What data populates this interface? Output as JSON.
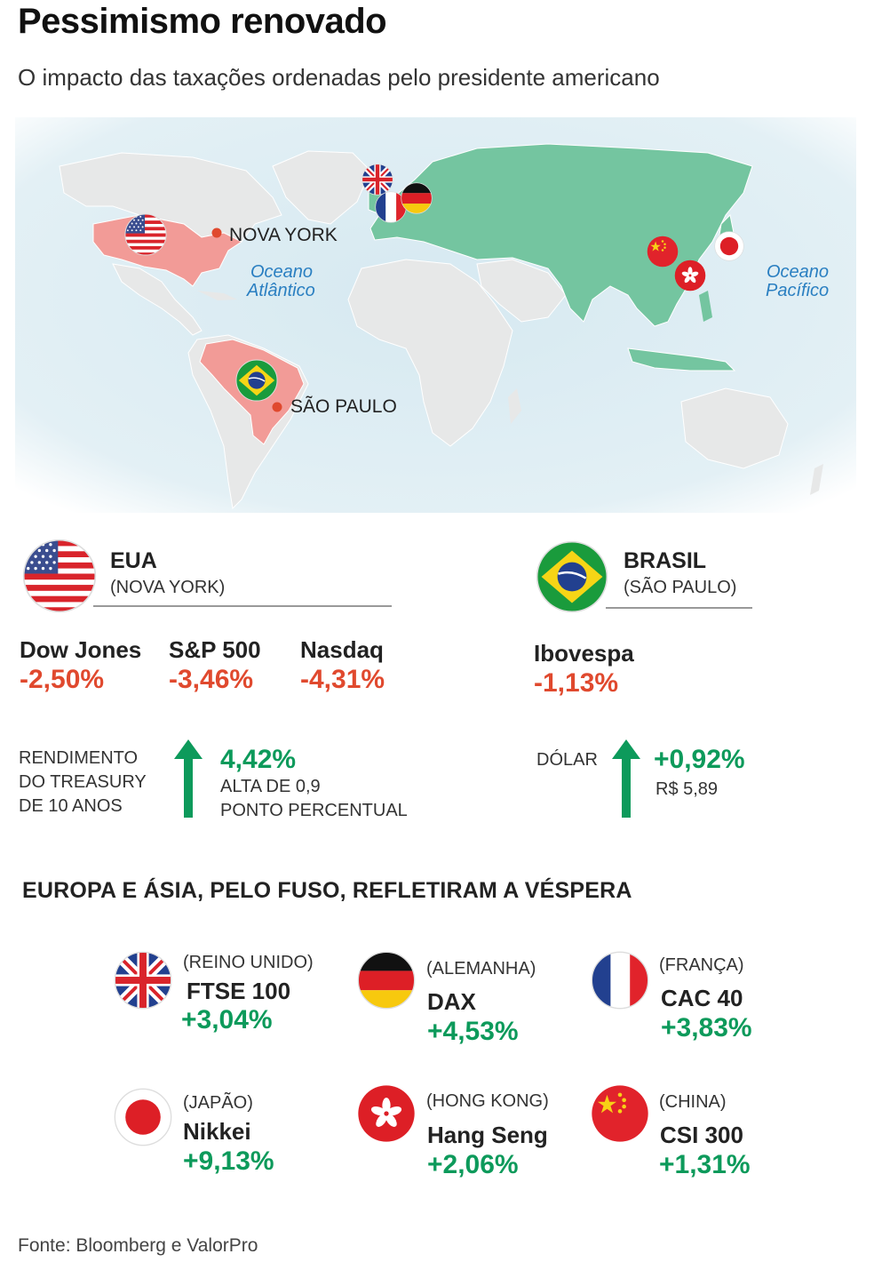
{
  "title": "Pessimismo renovado",
  "subtitle": "O impacto das taxações ordenadas pelo presidente americano",
  "map": {
    "labels": {
      "nova_york": "NOVA YORK",
      "sao_paulo": "SÃO PAULO",
      "ocean_atlantic_1": "Oceano",
      "ocean_atlantic_2": "Atlântico",
      "ocean_pacific_1": "Oceano",
      "ocean_pacific_2": "Pacífico"
    },
    "colors": {
      "sea": "#d7eaf2",
      "land": "#e7e8e8",
      "highlight_eu_asia": "#74c5a0",
      "highlight_us_br": "#f29b97",
      "city_dot": "#e0492e"
    }
  },
  "usa": {
    "name": "EUA",
    "city": "(NOVA YORK)",
    "indices": [
      {
        "name": "Dow Jones",
        "value": "-2,50%"
      },
      {
        "name": "S&P 500",
        "value": "-3,46%"
      },
      {
        "name": "Nasdaq",
        "value": "-4,31%"
      }
    ],
    "treasury": {
      "label_1": "RENDIMENTO",
      "label_2": "DO TREASURY",
      "label_3": "DE 10 ANOS",
      "value": "4,42%",
      "note_1": "ALTA DE 0,9",
      "note_2": "PONTO PERCENTUAL"
    }
  },
  "brazil": {
    "name": "BRASIL",
    "city": "(SÃO PAULO)",
    "index": {
      "name": "Ibovespa",
      "value": "-1,13%"
    },
    "dollar": {
      "label": "DÓLAR",
      "value": "+0,92%",
      "note": "R$ 5,89"
    }
  },
  "section_title": "EUROPA E ÁSIA, PELO FUSO, REFLETIRAM A VÉSPERA",
  "markets": [
    {
      "country": "(REINO UNIDO)",
      "name": "FTSE 100",
      "value": "+3,04%",
      "flag": "uk-flag"
    },
    {
      "country": "(ALEMANHA)",
      "name": "DAX",
      "value": "+4,53%",
      "flag": "germany-flag"
    },
    {
      "country": "(FRANÇA)",
      "name": "CAC 40",
      "value": "+3,83%",
      "flag": "france-flag"
    },
    {
      "country": "(JAPÃO)",
      "name": "Nikkei",
      "value": "+9,13%",
      "flag": "japan-flag"
    },
    {
      "country": "(HONG KONG)",
      "name": "Hang Seng",
      "value": "+2,06%",
      "flag": "hong-kong-flag"
    },
    {
      "country": "(CHINA)",
      "name": "CSI 300",
      "value": "+1,31%",
      "flag": "china-flag"
    }
  ],
  "source": "Fonte: Bloomberg e ValorPro",
  "colors": {
    "negative": "#e0492e",
    "positive": "#0d9a5b"
  }
}
